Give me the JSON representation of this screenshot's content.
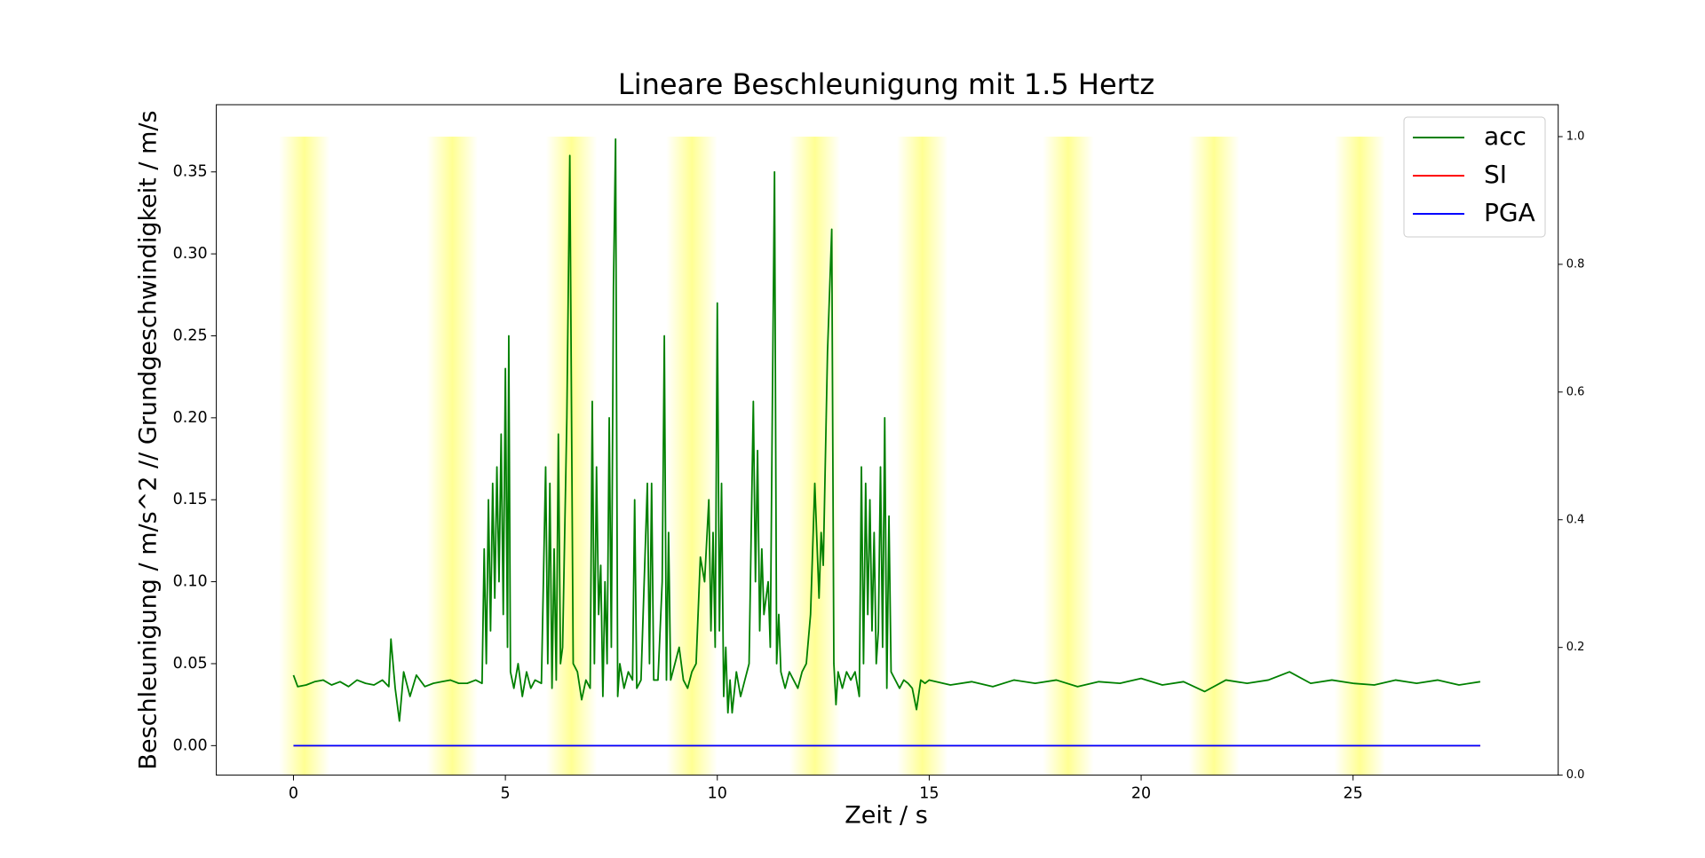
{
  "chart_data": {
    "type": "line",
    "title": "Lineare Beschleunigung mit 1.5 Hertz",
    "xlabel": "Zeit / s",
    "ylabel": "Beschleunigung / m/s^2 // Grundgeschwindigkeit / m/s",
    "xlim": [
      -1.82,
      29.84
    ],
    "ylim": [
      -0.018,
      0.391
    ],
    "y2lim": [
      0,
      1.05
    ],
    "xticks": [
      0,
      5,
      10,
      15,
      20,
      25
    ],
    "yticks": [
      {
        "value": 0,
        "label": "0.00"
      },
      {
        "value": 0.05,
        "label": "0.05"
      },
      {
        "value": 0.1,
        "label": "0.10"
      },
      {
        "value": 0.15,
        "label": "0.15"
      },
      {
        "value": 0.2,
        "label": "0.20"
      },
      {
        "value": 0.25,
        "label": "0.25"
      },
      {
        "value": 0.3,
        "label": "0.30"
      },
      {
        "value": 0.35,
        "label": "0.35"
      }
    ],
    "y2ticks": [
      {
        "value": 0,
        "label": "0.0"
      },
      {
        "value": 0.2,
        "label": "0.2"
      },
      {
        "value": 0.4,
        "label": "0.4"
      },
      {
        "value": 0.6,
        "label": "0.6"
      },
      {
        "value": 0.8,
        "label": "0.8"
      },
      {
        "value": 1,
        "label": "1.0"
      }
    ],
    "legend": "upper right",
    "spans": {
      "color": "#ffff80",
      "axis": "y2",
      "ymax": 1,
      "ranges": [
        [
          -0.34,
          0.86
        ],
        [
          3.15,
          4.35
        ],
        [
          5.96,
          7.16
        ],
        [
          8.8,
          10.0
        ],
        [
          11.7,
          12.9
        ],
        [
          14.24,
          15.44
        ],
        [
          17.68,
          18.88
        ],
        [
          21.12,
          22.32
        ],
        [
          24.56,
          25.76
        ]
      ]
    },
    "series": [
      {
        "name": "acc",
        "color": "#008000",
        "x": [
          0,
          0.1,
          0.3,
          0.5,
          0.7,
          0.9,
          1.1,
          1.3,
          1.5,
          1.7,
          1.9,
          2.1,
          2.25,
          2.3,
          2.4,
          2.5,
          2.6,
          2.75,
          2.9,
          3.1,
          3.3,
          3.5,
          3.7,
          3.9,
          4.1,
          4.3,
          4.45,
          4.5,
          4.55,
          4.6,
          4.65,
          4.7,
          4.75,
          4.8,
          4.85,
          4.9,
          4.95,
          5.0,
          5.05,
          5.08,
          5.12,
          5.2,
          5.3,
          5.4,
          5.5,
          5.6,
          5.7,
          5.85,
          5.95,
          6.0,
          6.05,
          6.1,
          6.15,
          6.2,
          6.25,
          6.3,
          6.35,
          6.45,
          6.52,
          6.6,
          6.7,
          6.8,
          6.9,
          7.0,
          7.05,
          7.1,
          7.15,
          7.2,
          7.25,
          7.3,
          7.35,
          7.4,
          7.45,
          7.5,
          7.55,
          7.6,
          7.65,
          7.7,
          7.8,
          7.9,
          8.0,
          8.05,
          8.1,
          8.2,
          8.3,
          8.35,
          8.4,
          8.45,
          8.5,
          8.6,
          8.7,
          8.75,
          8.8,
          8.85,
          8.9,
          9.0,
          9.1,
          9.2,
          9.3,
          9.4,
          9.5,
          9.6,
          9.7,
          9.8,
          9.85,
          9.9,
          9.95,
          10.0,
          10.05,
          10.1,
          10.15,
          10.2,
          10.25,
          10.3,
          10.35,
          10.45,
          10.55,
          10.65,
          10.75,
          10.85,
          10.9,
          10.95,
          11.0,
          11.05,
          11.1,
          11.2,
          11.25,
          11.3,
          11.35,
          11.4,
          11.45,
          11.5,
          11.6,
          11.7,
          11.8,
          11.9,
          12.0,
          12.1,
          12.2,
          12.3,
          12.4,
          12.45,
          12.5,
          12.6,
          12.7,
          12.75,
          12.8,
          12.85,
          12.95,
          13.05,
          13.15,
          13.25,
          13.35,
          13.4,
          13.45,
          13.5,
          13.55,
          13.6,
          13.65,
          13.7,
          13.75,
          13.8,
          13.85,
          13.9,
          13.95,
          14.0,
          14.05,
          14.1,
          14.2,
          14.3,
          14.4,
          14.5,
          14.6,
          14.7,
          14.8,
          14.9,
          15.0,
          15.5,
          16,
          16.5,
          17,
          17.5,
          18,
          18.5,
          19,
          19.5,
          20,
          20.5,
          21,
          21.5,
          22,
          22.5,
          23,
          23.5,
          24,
          24.5,
          25,
          25.5,
          26,
          26.5,
          27,
          27.5,
          28
        ],
        "values": [
          0.043,
          0.036,
          0.037,
          0.039,
          0.04,
          0.037,
          0.039,
          0.036,
          0.04,
          0.038,
          0.037,
          0.04,
          0.036,
          0.065,
          0.035,
          0.015,
          0.045,
          0.03,
          0.043,
          0.036,
          0.038,
          0.039,
          0.04,
          0.038,
          0.038,
          0.04,
          0.038,
          0.12,
          0.05,
          0.15,
          0.07,
          0.16,
          0.09,
          0.17,
          0.1,
          0.19,
          0.08,
          0.23,
          0.06,
          0.25,
          0.045,
          0.035,
          0.05,
          0.03,
          0.045,
          0.035,
          0.04,
          0.038,
          0.17,
          0.05,
          0.16,
          0.035,
          0.12,
          0.04,
          0.19,
          0.05,
          0.06,
          0.2,
          0.36,
          0.05,
          0.045,
          0.028,
          0.04,
          0.035,
          0.21,
          0.05,
          0.17,
          0.08,
          0.11,
          0.03,
          0.1,
          0.05,
          0.2,
          0.06,
          0.28,
          0.37,
          0.03,
          0.05,
          0.035,
          0.045,
          0.04,
          0.15,
          0.035,
          0.04,
          0.12,
          0.16,
          0.05,
          0.16,
          0.04,
          0.04,
          0.1,
          0.25,
          0.04,
          0.13,
          0.04,
          0.05,
          0.06,
          0.04,
          0.035,
          0.045,
          0.05,
          0.115,
          0.1,
          0.15,
          0.07,
          0.13,
          0.06,
          0.27,
          0.07,
          0.16,
          0.03,
          0.06,
          0.02,
          0.04,
          0.02,
          0.045,
          0.03,
          0.04,
          0.05,
          0.21,
          0.1,
          0.18,
          0.07,
          0.12,
          0.08,
          0.1,
          0.06,
          0.21,
          0.35,
          0.05,
          0.08,
          0.045,
          0.035,
          0.045,
          0.04,
          0.035,
          0.045,
          0.05,
          0.08,
          0.16,
          0.09,
          0.13,
          0.11,
          0.24,
          0.315,
          0.05,
          0.025,
          0.045,
          0.035,
          0.045,
          0.04,
          0.045,
          0.03,
          0.17,
          0.05,
          0.16,
          0.08,
          0.15,
          0.07,
          0.13,
          0.05,
          0.07,
          0.17,
          0.06,
          0.2,
          0.035,
          0.14,
          0.045,
          0.04,
          0.035,
          0.04,
          0.038,
          0.035,
          0.022,
          0.04,
          0.038,
          0.04,
          0.037,
          0.039,
          0.036,
          0.04,
          0.038,
          0.04,
          0.036,
          0.039,
          0.038,
          0.041,
          0.037,
          0.039,
          0.033,
          0.04,
          0.038,
          0.04,
          0.045,
          0.038,
          0.04,
          0.038,
          0.037,
          0.04,
          0.038,
          0.04,
          0.037,
          0.039
        ]
      },
      {
        "name": "SI",
        "color": "#ff0000",
        "x": [
          0,
          28
        ],
        "values": [
          0,
          0
        ]
      },
      {
        "name": "PGA",
        "color": "#0000ff",
        "x": [
          0,
          28
        ],
        "values": [
          0,
          0
        ]
      }
    ]
  }
}
